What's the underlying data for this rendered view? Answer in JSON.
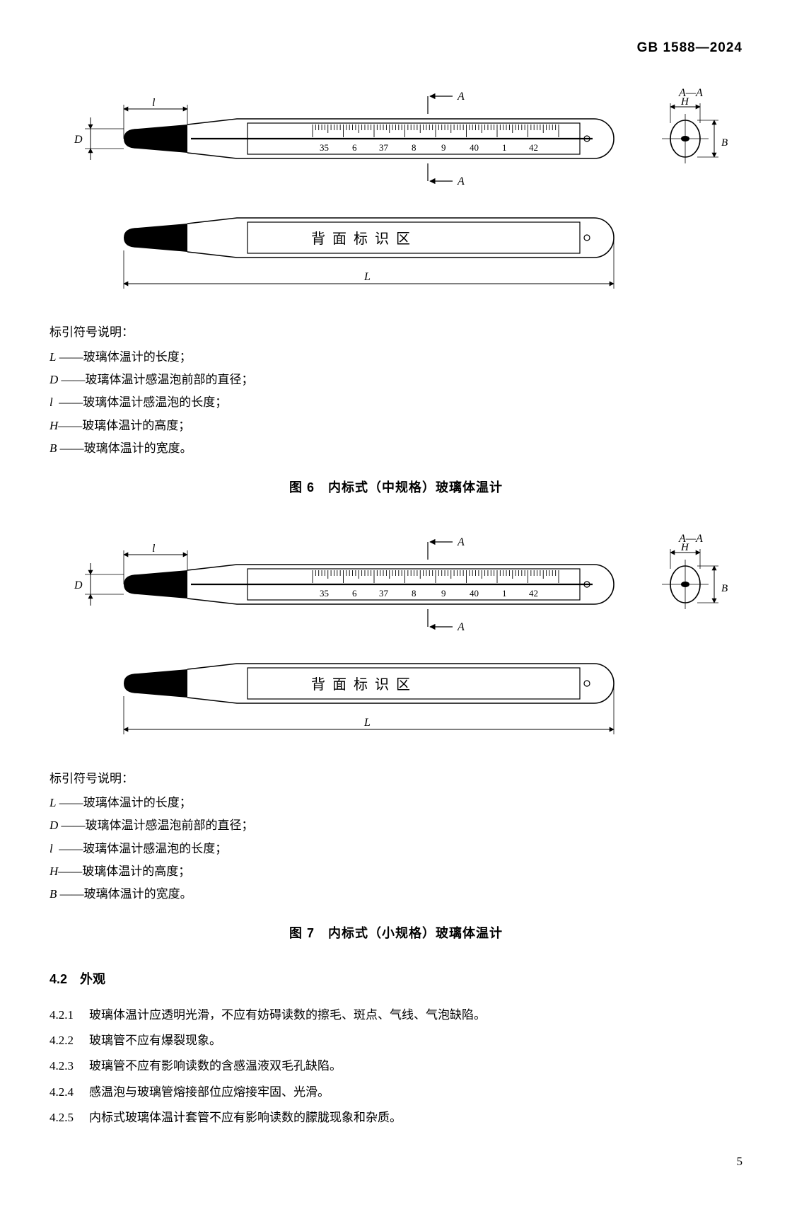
{
  "header": {
    "code": "GB 1588—2024"
  },
  "diagram": {
    "section_label_A": "A",
    "section_label_AA": "A—A",
    "dim_L": "L",
    "dim_D": "D",
    "dim_l": "l",
    "dim_H": "H",
    "dim_B": "B",
    "scale_labels": [
      "35",
      "6",
      "37",
      "8",
      "9",
      "40",
      "1",
      "42"
    ],
    "back_label": "背 面 标 识 区"
  },
  "legend": {
    "title": "标引符号说明：",
    "items": [
      {
        "sym": "L",
        "desc": "——玻璃体温计的长度；"
      },
      {
        "sym": "D",
        "desc": "——玻璃体温计感温泡前部的直径；"
      },
      {
        "sym": "l",
        "desc": "——玻璃体温计感温泡的长度；"
      },
      {
        "sym": "H",
        "desc": "——玻璃体温计的高度；"
      },
      {
        "sym": "B",
        "desc": "——玻璃体温计的宽度。"
      }
    ]
  },
  "fig6_caption": "图 6　内标式（中规格）玻璃体温计",
  "fig7_caption": "图 7　内标式（小规格）玻璃体温计",
  "section42": {
    "num": "4.2",
    "title": "外观"
  },
  "clauses": [
    {
      "num": "4.2.1",
      "text": "玻璃体温计应透明光滑，不应有妨碍读数的擦毛、斑点、气线、气泡缺陷。"
    },
    {
      "num": "4.2.2",
      "text": "玻璃管不应有爆裂现象。"
    },
    {
      "num": "4.2.3",
      "text": "玻璃管不应有影响读数的含感温液双毛孔缺陷。"
    },
    {
      "num": "4.2.4",
      "text": "感温泡与玻璃管熔接部位应熔接牢固、光滑。"
    },
    {
      "num": "4.2.5",
      "text": "内标式玻璃体温计套管不应有影响读数的朦胧现象和杂质。"
    }
  ],
  "page": "5"
}
